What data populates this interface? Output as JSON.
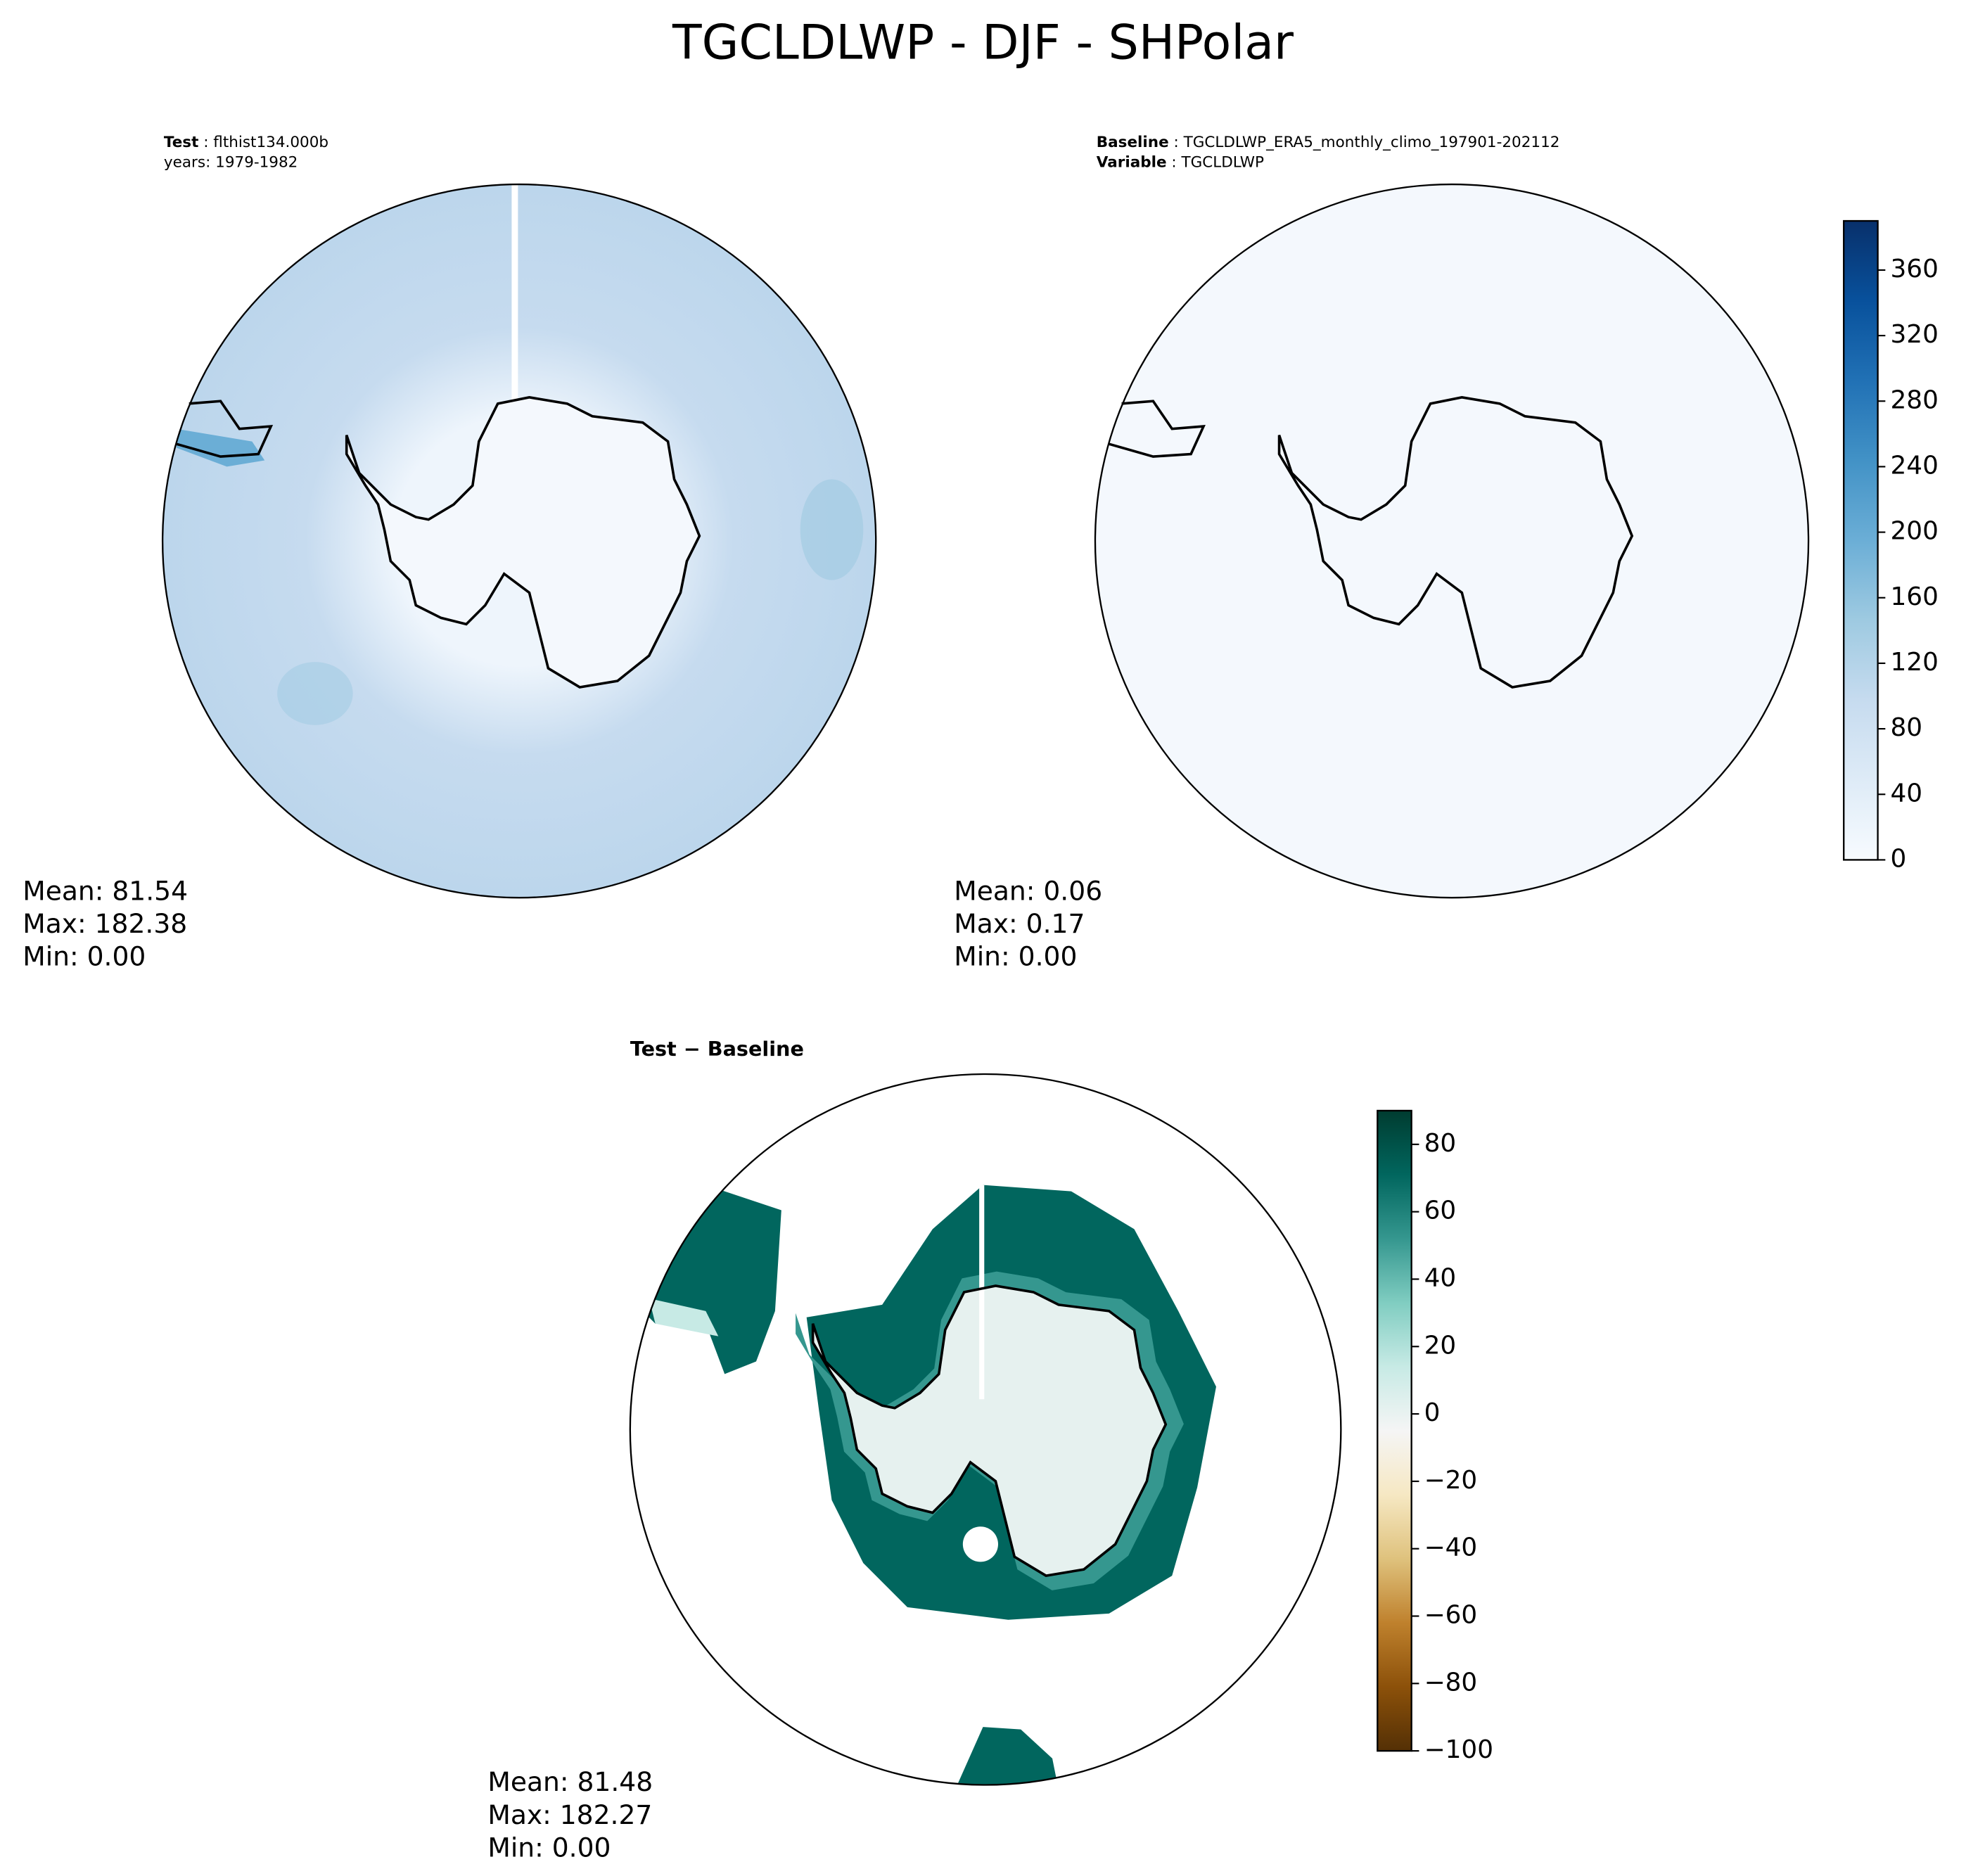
{
  "title": "TGCLDLWP - DJF - SHPolar",
  "panels": [
    {
      "header": [
        {
          "label": "Test",
          "text": " : flthist134.000b"
        },
        {
          "text": "years: 1979-1982"
        }
      ],
      "stats": [
        "Mean: 81.54",
        "Max: 182.38",
        "Min:  0.00"
      ]
    },
    {
      "header": [
        {
          "label": "Baseline",
          "text": " : TGCLDLWP_ERA5_monthly_climo_197901-202112"
        },
        {
          "label": "Variable",
          "text": " : TGCLDLWP"
        }
      ],
      "stats": [
        "Mean:  0.06",
        "Max:  0.17",
        "Min:  0.00"
      ]
    },
    {
      "header": [
        {
          "label": "Test − Baseline"
        }
      ],
      "stats": [
        "Mean: 81.48",
        "Max: 182.27",
        "Min:  0.00"
      ]
    }
  ],
  "colorbars": [
    {
      "lim": [
        0,
        390
      ],
      "ticks": [
        0,
        40,
        80,
        120,
        160,
        200,
        240,
        280,
        320,
        360
      ],
      "colors": [
        "#f7fbff",
        "#deebf7",
        "#c6dbef",
        "#9ecae1",
        "#6baed6",
        "#4292c6",
        "#2171b5",
        "#08519c",
        "#08306b"
      ]
    },
    {
      "lim": [
        -100,
        90
      ],
      "ticks": [
        {
          "value": -100,
          "label": "−100"
        },
        {
          "value": -80,
          "label": "−80"
        },
        {
          "value": -60,
          "label": "−60"
        },
        {
          "value": -40,
          "label": "−40"
        },
        {
          "value": -20,
          "label": "−20"
        },
        0,
        20,
        40,
        60,
        80
      ],
      "colors": [
        "#543005",
        "#8c510a",
        "#bf812d",
        "#dfc27d",
        "#f6e8c3",
        "#f5f5f5",
        "#c7eae5",
        "#80cdc1",
        "#35978f",
        "#01665e",
        "#003c30"
      ]
    }
  ]
}
